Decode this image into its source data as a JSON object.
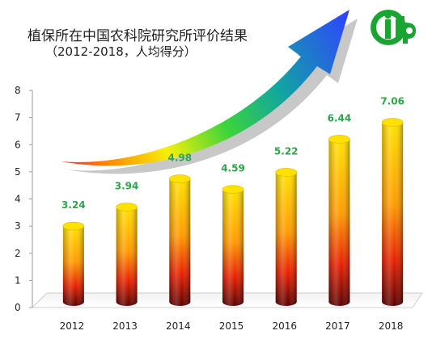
{
  "title": "植保所在中国农科院研究所评价结果",
  "subtitle": "（2012-2018，人均得分）",
  "logo": {
    "icon": "ifp-logo-icon",
    "text": "ifp",
    "color": "#1aa533"
  },
  "colors": {
    "bar_top": "#ffe100",
    "bar_mid": "#ff7a00",
    "bar_bottom": "#c80000",
    "bar_base": "#5a0000",
    "label": "#2aa64a",
    "arrow_start": "#ff2a2a",
    "arrow_mid": "#f4f40a",
    "arrow_end": "#2f45ff"
  },
  "chart_data": {
    "type": "bar",
    "style": "3d-cylinder",
    "title": "植保所在中国农科院研究所评价结果",
    "subtitle": "（2012-2018，人均得分）",
    "categories": [
      "2012",
      "2013",
      "2014",
      "2015",
      "2016",
      "2017",
      "2018"
    ],
    "values": [
      3.24,
      3.94,
      4.98,
      4.59,
      5.22,
      6.44,
      7.06
    ],
    "data_labels": [
      "3.24",
      "3.94",
      "4.98",
      "4.59",
      "5.22",
      "6.44",
      "7.06"
    ],
    "ylim": [
      0,
      8
    ],
    "yticks": [
      "0",
      "1",
      "2",
      "3",
      "4",
      "5",
      "6",
      "7",
      "8"
    ],
    "xlabel": "",
    "ylabel": "",
    "grid": false,
    "legend": "none",
    "annotations": [
      {
        "type": "arrow",
        "description": "rainbow-gradient upward trend arrow",
        "direction": "up-right"
      }
    ]
  }
}
